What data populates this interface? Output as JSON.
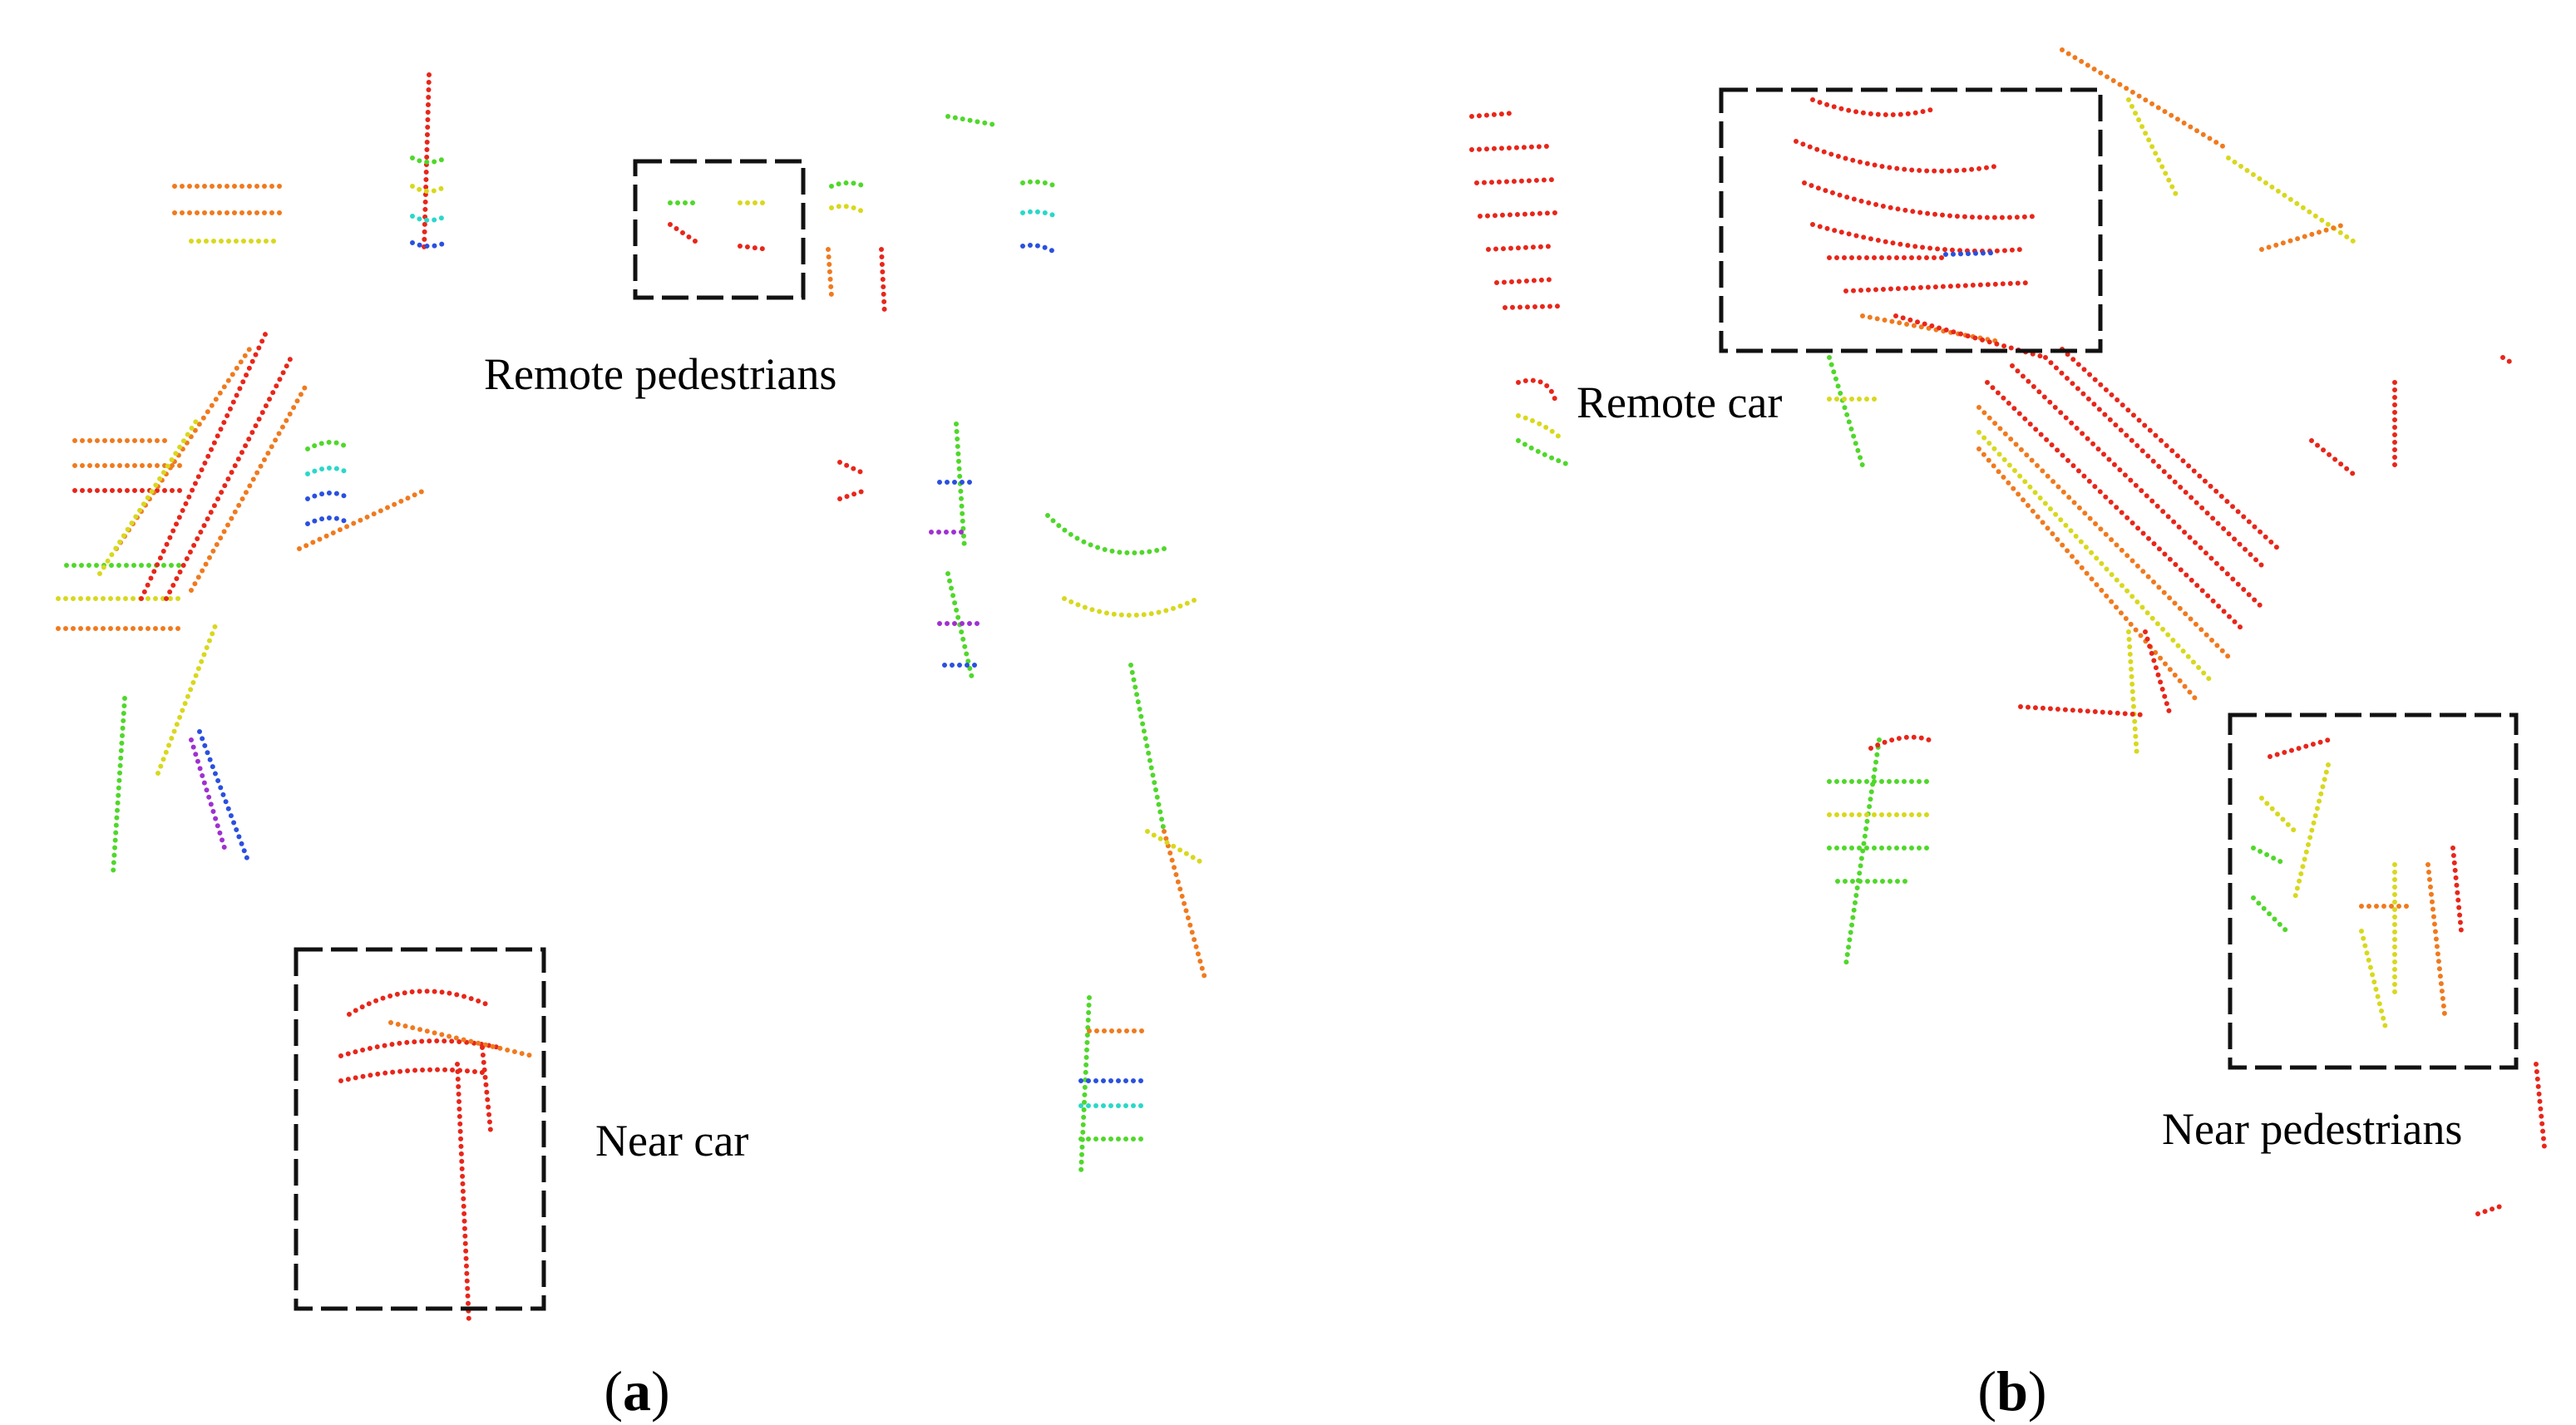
{
  "panels": [
    {
      "label": {
        "open": "(",
        "letter": "a",
        "close": ")"
      },
      "annotations": [
        "Remote pedestrians",
        "Near car"
      ]
    },
    {
      "label": {
        "open": "(",
        "letter": "b",
        "close": ")"
      },
      "annotations": [
        "Remote car",
        "Near pedestrians"
      ]
    }
  ]
}
